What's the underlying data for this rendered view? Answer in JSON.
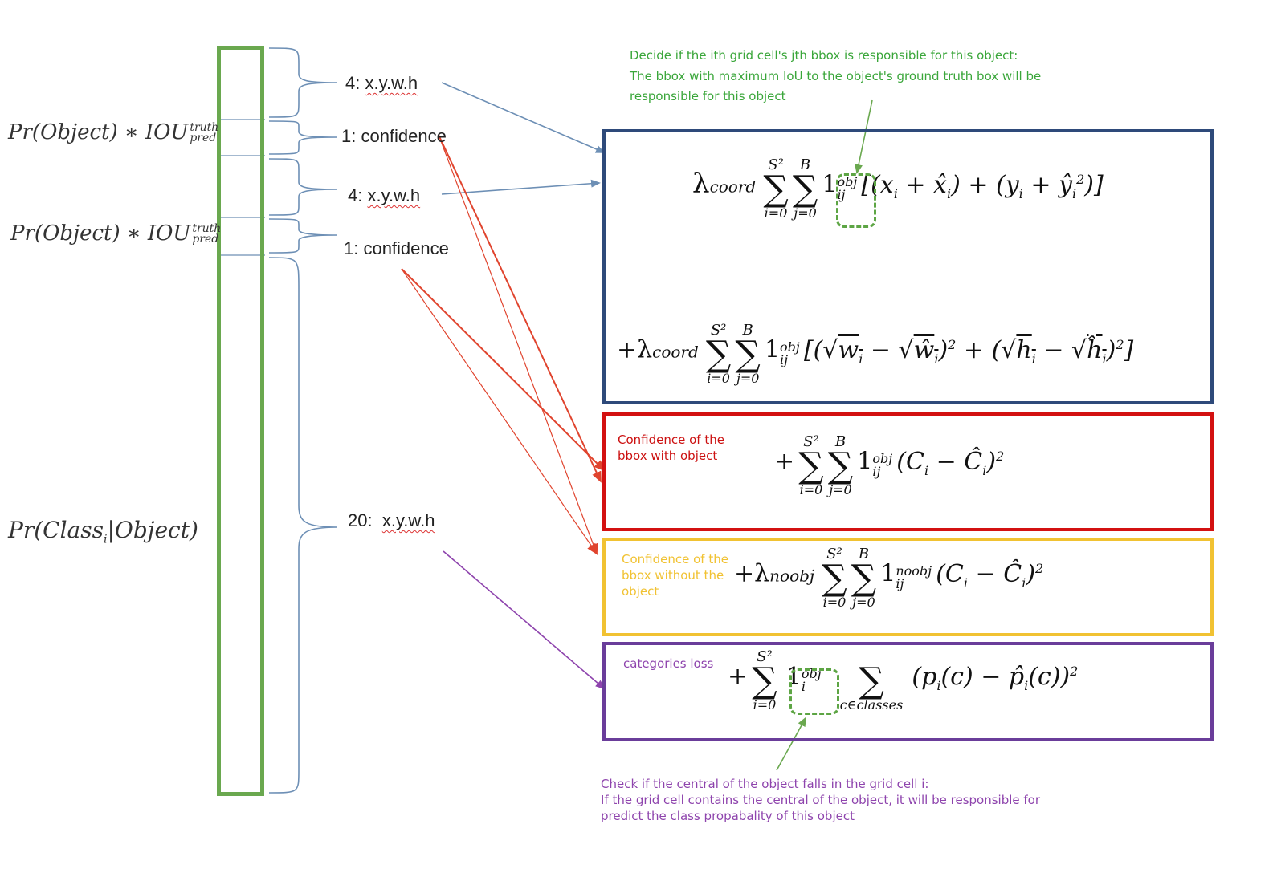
{
  "colors": {
    "vector_bar": "#6aa84f",
    "box_coord": "#2e4a7a",
    "box_conf_obj": "#d31111",
    "box_conf_noobj": "#f1c232",
    "box_class": "#6a3d9a",
    "note_green": "#3aa63a",
    "note_red": "#cc1111",
    "note_yellow": "#f1c232",
    "note_purple": "#8e44ad",
    "arrow_blue": "#6d8fb5",
    "arrow_red": "#e0442e",
    "arrow_purple": "#8e44ad",
    "arrow_green": "#6aa84f"
  },
  "left_labels": {
    "pr_obj_1": "Pr(Object) ∗ IOU",
    "pr_obj_1_sup": "truth",
    "pr_obj_1_sub": "pred",
    "pr_obj_2": "Pr(Object) ∗ IOU",
    "pr_obj_2_sup": "truth",
    "pr_obj_2_sub": "pred",
    "pr_class": "Pr(Class",
    "pr_class_sub": "i",
    "pr_class_end": "|Object)"
  },
  "vector_labels": {
    "coord1_num": "4:",
    "coord1_txt": "x.y.w.h",
    "conf1": "1: confidence",
    "coord2_num": "4:",
    "coord2_txt": "x.y.w.h",
    "conf2": "1: confidence",
    "class_num": "20:",
    "class_txt": "x.y.w.h"
  },
  "notes": {
    "responsible_l1": "Decide if the ith grid cell's jth bbox is responsible for this object:",
    "responsible_l2": "The bbox with maximum IoU to the object's ground truth box will be",
    "responsible_l3": "responsible for this object",
    "conf_obj_l1": "Confidence of the",
    "conf_obj_l2": "bbox with object",
    "conf_noobj_l1": "Confidence of the",
    "conf_noobj_l2": "bbox without the",
    "conf_noobj_l3": "object",
    "categories": "categories loss",
    "central_l1": "Check if the central of the object falls in the grid cell i:",
    "central_l2": "If the grid cell contains the central of the object, it will be responsible for",
    "central_l3": "predict the class propabality of this object"
  },
  "formulas": {
    "coord_xy": "λcoord ∑ ∑ 1ij [(xi + x̂i) + (yi + ŷi²)]",
    "coord_wh": "+λcoord ∑ ∑ 1ij [(√wi − √ŵi)² + (√hi − √ĥi)²]",
    "conf_obj": "+ ∑ ∑ 1ij (Ci − Ĉi)²",
    "conf_noobj": "+λnoobj ∑ ∑ 1ij (Ci − Ĉi)²",
    "class": "+ ∑ 1i ∑ (pi(c) − p̂i(c))²"
  }
}
